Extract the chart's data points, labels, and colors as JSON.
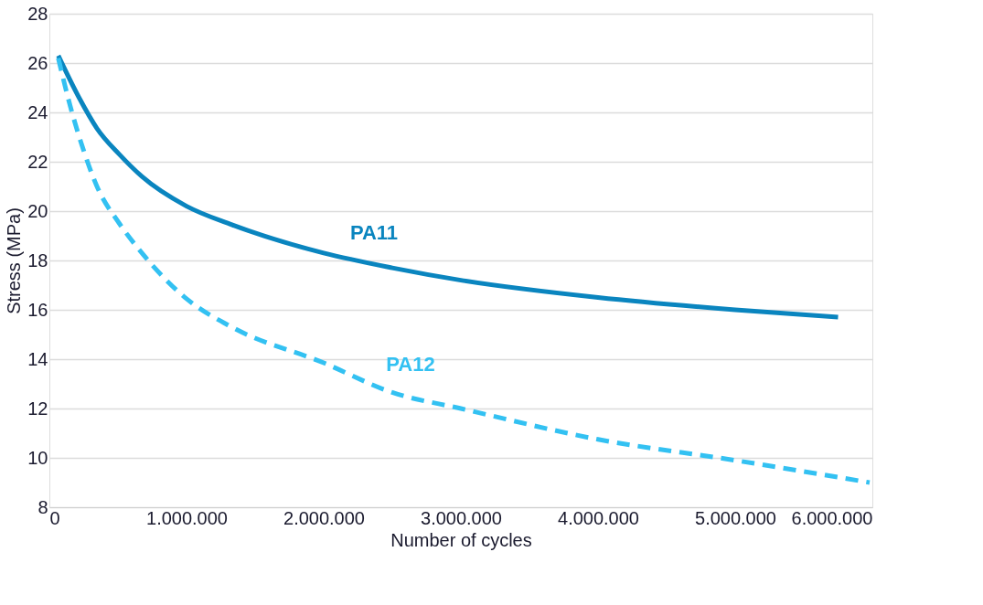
{
  "chart_data": {
    "type": "line",
    "xlabel": "Number of cycles",
    "ylabel": "Stress (MPa)",
    "xlim": [
      0,
      6000000
    ],
    "ylim": [
      8,
      28
    ],
    "xticks": [
      0,
      {
        "value": 1000000,
        "label": "1.000.000"
      },
      {
        "value": 2000000,
        "label": "2.000.000"
      },
      {
        "value": 3000000,
        "label": "3.000.000"
      },
      {
        "value": 4000000,
        "label": "4.000.000"
      },
      {
        "value": 5000000,
        "label": "5.000.000"
      },
      {
        "value": 6000000,
        "label": "6.000.000"
      }
    ],
    "yticks": [
      8,
      10,
      12,
      14,
      16,
      18,
      20,
      22,
      24,
      26,
      28
    ],
    "grid": "y",
    "series": [
      {
        "name": "PA11",
        "color": "#0a85bf",
        "line_style": "solid",
        "x": [
          65000,
          216000,
          347000,
          510000,
          675000,
          1000000,
          1330000,
          2000000,
          2500000,
          3000000,
          4000000,
          5000000,
          5750000
        ],
        "values": [
          26.3,
          24.6,
          23.35,
          22.3,
          21.4,
          20.2,
          19.45,
          18.3,
          17.7,
          17.2,
          16.5,
          16.0,
          15.7
        ]
      },
      {
        "name": "PA12",
        "color": "#33c1f2",
        "line_style": "dashed",
        "x": [
          65000,
          150000,
          250000,
          347000,
          510000,
          675000,
          1000000,
          1330000,
          2000000,
          2500000,
          3000000,
          4000000,
          5000000,
          5980000
        ],
        "values": [
          26.2,
          24.3,
          22.45,
          21.0,
          19.5,
          18.3,
          16.45,
          15.3,
          13.85,
          12.65,
          12.0,
          10.75,
          9.9,
          9.0
        ]
      }
    ]
  }
}
